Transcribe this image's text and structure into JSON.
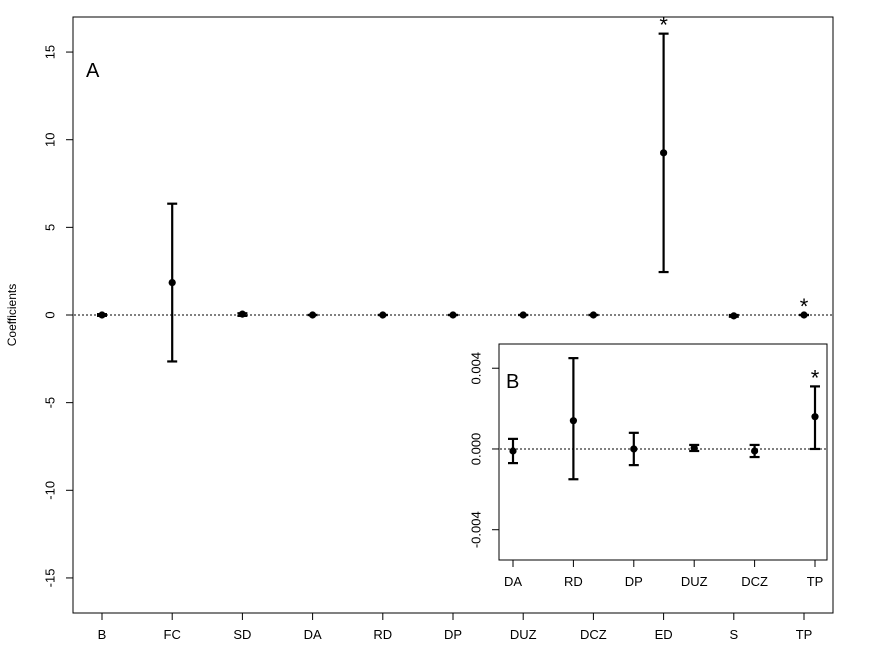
{
  "chart_data": [
    {
      "panel": "A",
      "type": "scatter",
      "ylabel": "Coefficients",
      "ylim": [
        -17,
        17
      ],
      "yticks": [
        "15",
        "10",
        "5",
        "0",
        "-5",
        "-10",
        "-15"
      ],
      "ytick_values": [
        15,
        10,
        5,
        0,
        -5,
        -10,
        -15
      ],
      "categories": [
        "B",
        "FC",
        "SD",
        "DA",
        "RD",
        "DP",
        "DUZ",
        "DCZ",
        "ED",
        "S",
        "TP"
      ],
      "estimates": [
        0,
        1.85,
        0.05,
        0,
        0,
        0,
        0,
        0,
        9.25,
        -0.05,
        0
      ],
      "lower": [
        -0.05,
        -2.65,
        -0.05,
        0,
        0,
        0,
        0,
        0,
        2.45,
        -0.1,
        0
      ],
      "upper": [
        0.05,
        6.35,
        0.1,
        0,
        0,
        0,
        0,
        0,
        16.05,
        0.0,
        0
      ],
      "significance_markers": [
        {
          "category": "ED",
          "label": "*"
        },
        {
          "category": "TP",
          "label": "*"
        }
      ],
      "reference_line": 0
    },
    {
      "panel": "B",
      "type": "scatter",
      "ylim": [
        -0.0055,
        0.0052
      ],
      "yticks": [
        "0.004",
        "0.000",
        "-0.004"
      ],
      "ytick_values": [
        0.004,
        0.0,
        -0.004
      ],
      "categories": [
        "DA",
        "RD",
        "DP",
        "DUZ",
        "DCZ",
        "TP"
      ],
      "estimates": [
        -0.0001,
        0.0014,
        0.0,
        5e-05,
        -0.0001,
        0.0016
      ],
      "lower": [
        -0.0007,
        -0.0015,
        -0.0008,
        -0.0001,
        -0.0004,
        0.0
      ],
      "upper": [
        0.0005,
        0.0045,
        0.0008,
        0.0002,
        0.0002,
        0.0031
      ],
      "significance_markers": [
        {
          "category": "TP",
          "label": "*"
        }
      ],
      "reference_line": 0
    }
  ]
}
